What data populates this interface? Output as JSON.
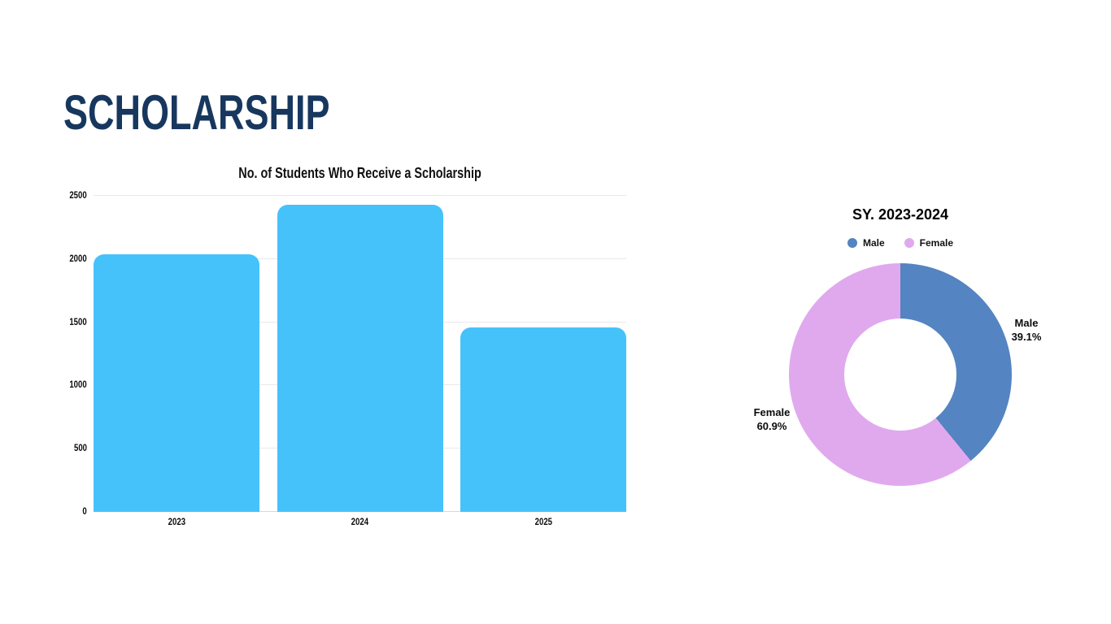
{
  "page": {
    "title": "SCHOLARSHIP",
    "title_color": "#17375E",
    "background": "#FFFFFF"
  },
  "chart_data": [
    {
      "type": "bar",
      "title": "No. of Students Who Receive a Scholarship",
      "categories": [
        "2023",
        "2024",
        "2025"
      ],
      "values": [
        2040,
        2430,
        1460
      ],
      "xlabel": "",
      "ylabel": "",
      "ylim": [
        0,
        2500
      ],
      "ytick_step": 500,
      "grid": true,
      "legend_position": "none",
      "bar_color": "#46C2FB",
      "gridline_color": "#E9E9E9",
      "baseline_color": "#D8D8D8"
    },
    {
      "type": "pie",
      "donut": true,
      "title": "SY. 2023-2024",
      "labels": [
        "Male",
        "Female"
      ],
      "values": [
        39.1,
        60.9
      ],
      "colors": [
        "#5484C1",
        "#E0A9EE"
      ],
      "legend_position": "top",
      "slice_labels": [
        {
          "label": "Male",
          "value": "39.1%"
        },
        {
          "label": "Female",
          "value": "60.9%"
        }
      ]
    }
  ]
}
